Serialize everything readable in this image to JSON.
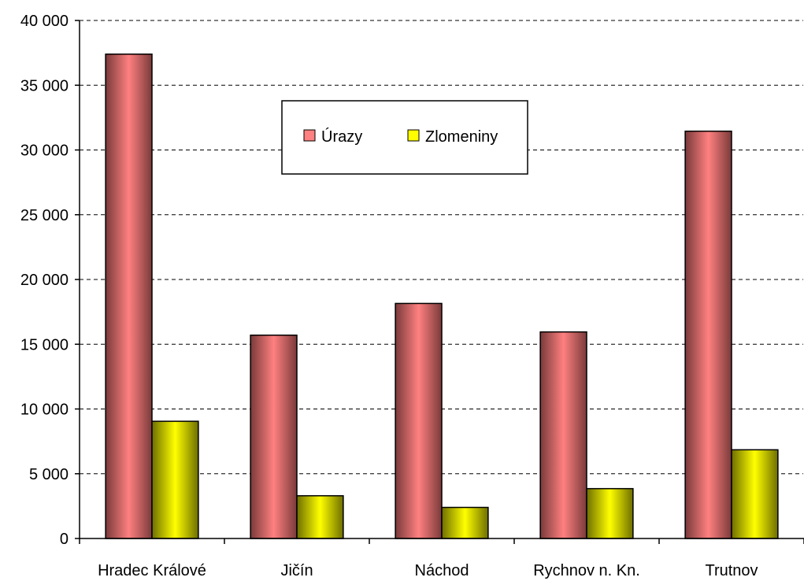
{
  "chart_data": {
    "type": "bar",
    "title": "",
    "xlabel": "",
    "ylabel": "",
    "categories": [
      "Hradec Králové",
      "Jičín",
      "Náchod",
      "Rychnov n. Kn.",
      "Trutnov"
    ],
    "series": [
      {
        "name": "Úrazy",
        "values": [
          37400,
          15700,
          18150,
          15950,
          31450
        ],
        "color": "#ff8080",
        "edge": "#7a3a3a"
      },
      {
        "name": "Zlomeniny",
        "values": [
          9050,
          3300,
          2400,
          3850,
          6850
        ],
        "color": "#ffff00",
        "edge": "#6e6e00"
      }
    ],
    "ylim": [
      0,
      40000
    ],
    "yticks": [
      0,
      5000,
      10000,
      15000,
      20000,
      25000,
      30000,
      35000,
      40000
    ],
    "ytick_labels": [
      "0",
      "5 000",
      "10 000",
      "15 000",
      "20 000",
      "25 000",
      "30 000",
      "35 000",
      "40 000"
    ],
    "grid": true,
    "legend_position": "top-center"
  }
}
